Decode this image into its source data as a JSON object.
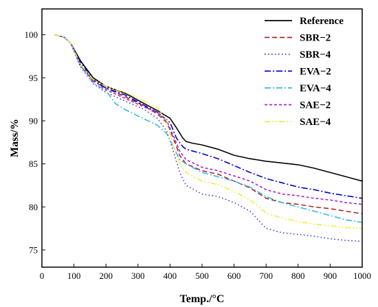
{
  "chart_data": {
    "type": "line",
    "title": "",
    "xlabel": "Temp./°C",
    "ylabel": "Mass/%",
    "xlim": [
      0,
      1000
    ],
    "ylim": [
      73,
      103
    ],
    "x_ticks": [
      0,
      100,
      200,
      300,
      400,
      500,
      600,
      700,
      800,
      900,
      1000
    ],
    "y_ticks": [
      75,
      80,
      85,
      90,
      95,
      100
    ],
    "grid": false,
    "legend_position": "top-right",
    "series": [
      {
        "name": "Reference",
        "color": "#000000",
        "dash": "solid",
        "x": [
          40,
          70,
          90,
          120,
          160,
          200,
          260,
          320,
          360,
          400,
          420,
          440,
          450,
          470,
          500,
          550,
          600,
          650,
          700,
          750,
          800,
          850,
          900,
          950,
          1000
        ],
        "y": [
          100,
          99.7,
          99.0,
          97.0,
          95.0,
          94.0,
          93.2,
          92.0,
          91.2,
          90.3,
          89.2,
          88.0,
          87.6,
          87.4,
          87.2,
          86.7,
          86.0,
          85.6,
          85.3,
          85.1,
          84.9,
          84.5,
          84.0,
          83.5,
          83.0
        ]
      },
      {
        "name": "SBR−2",
        "color": "#b22222",
        "dash": "dash",
        "x": [
          40,
          70,
          90,
          120,
          160,
          200,
          260,
          320,
          360,
          390,
          410,
          430,
          450,
          500,
          550,
          600,
          650,
          700,
          750,
          800,
          850,
          900,
          950,
          1000
        ],
        "y": [
          100,
          99.7,
          99.0,
          96.5,
          94.6,
          93.8,
          92.8,
          91.7,
          90.8,
          89.8,
          88.0,
          86.0,
          85.0,
          84.2,
          83.8,
          83.0,
          82.2,
          81.0,
          80.5,
          80.3,
          80.0,
          79.8,
          79.5,
          79.2
        ]
      },
      {
        "name": "SBR−4",
        "color": "#3333cc",
        "dash": "dot",
        "x": [
          40,
          70,
          90,
          120,
          160,
          200,
          260,
          320,
          360,
          390,
          410,
          430,
          450,
          500,
          550,
          600,
          650,
          700,
          750,
          800,
          850,
          900,
          950,
          1000
        ],
        "y": [
          100,
          99.7,
          99.0,
          96.3,
          94.3,
          93.3,
          92.3,
          91.3,
          90.3,
          88.8,
          86.5,
          84.0,
          82.5,
          81.5,
          81.2,
          80.5,
          79.5,
          77.5,
          77.0,
          76.8,
          76.6,
          76.3,
          76.1,
          76.0
        ]
      },
      {
        "name": "EVA−2",
        "color": "#0000cc",
        "dash": "dashdot",
        "x": [
          40,
          70,
          90,
          120,
          160,
          200,
          260,
          320,
          360,
          400,
          420,
          440,
          450,
          470,
          500,
          550,
          600,
          650,
          700,
          750,
          800,
          850,
          900,
          950,
          1000
        ],
        "y": [
          100,
          99.7,
          99.0,
          96.8,
          94.8,
          93.8,
          93.0,
          91.8,
          91.0,
          89.8,
          88.0,
          87.0,
          86.7,
          86.5,
          86.2,
          85.6,
          84.8,
          84.0,
          83.3,
          82.8,
          82.3,
          82.0,
          81.6,
          81.3,
          81.0
        ]
      },
      {
        "name": "EVA−4",
        "color": "#33bbdd",
        "dash": "dashdot",
        "x": [
          40,
          70,
          90,
          120,
          160,
          200,
          230,
          260,
          320,
          360,
          390,
          410,
          430,
          450,
          500,
          550,
          600,
          650,
          700,
          750,
          800,
          850,
          900,
          950,
          1000
        ],
        "y": [
          100,
          99.7,
          99.0,
          96.4,
          94.4,
          93.5,
          92.0,
          91.3,
          90.2,
          89.5,
          88.5,
          87.0,
          85.5,
          85.0,
          84.0,
          83.5,
          83.0,
          82.3,
          81.2,
          80.5,
          80.0,
          79.5,
          79.0,
          78.5,
          78.2
        ]
      },
      {
        "name": "SAE−2",
        "color": "#aa22cc",
        "dash": "shortdash",
        "x": [
          40,
          70,
          90,
          120,
          160,
          200,
          260,
          320,
          360,
          390,
          410,
          430,
          450,
          500,
          550,
          600,
          650,
          700,
          750,
          800,
          850,
          900,
          950,
          1000
        ],
        "y": [
          100,
          99.7,
          99.0,
          96.6,
          94.7,
          93.6,
          92.6,
          91.6,
          91.0,
          90.0,
          88.3,
          86.5,
          85.5,
          84.6,
          84.2,
          83.6,
          83.0,
          82.0,
          81.5,
          81.3,
          81.0,
          80.8,
          80.5,
          80.3
        ]
      },
      {
        "name": "SAE−4",
        "color": "#eeee44",
        "dash": "dashdotdot",
        "x": [
          40,
          70,
          90,
          120,
          160,
          200,
          260,
          320,
          360,
          390,
          410,
          430,
          450,
          500,
          550,
          600,
          650,
          700,
          750,
          800,
          850,
          900,
          950,
          1000
        ],
        "y": [
          100,
          99.7,
          99.0,
          96.6,
          94.8,
          94.0,
          93.3,
          92.3,
          91.5,
          90.0,
          87.0,
          85.0,
          84.0,
          83.0,
          82.6,
          81.8,
          80.8,
          79.3,
          78.7,
          78.3,
          78.0,
          77.8,
          77.6,
          77.5
        ]
      }
    ]
  }
}
